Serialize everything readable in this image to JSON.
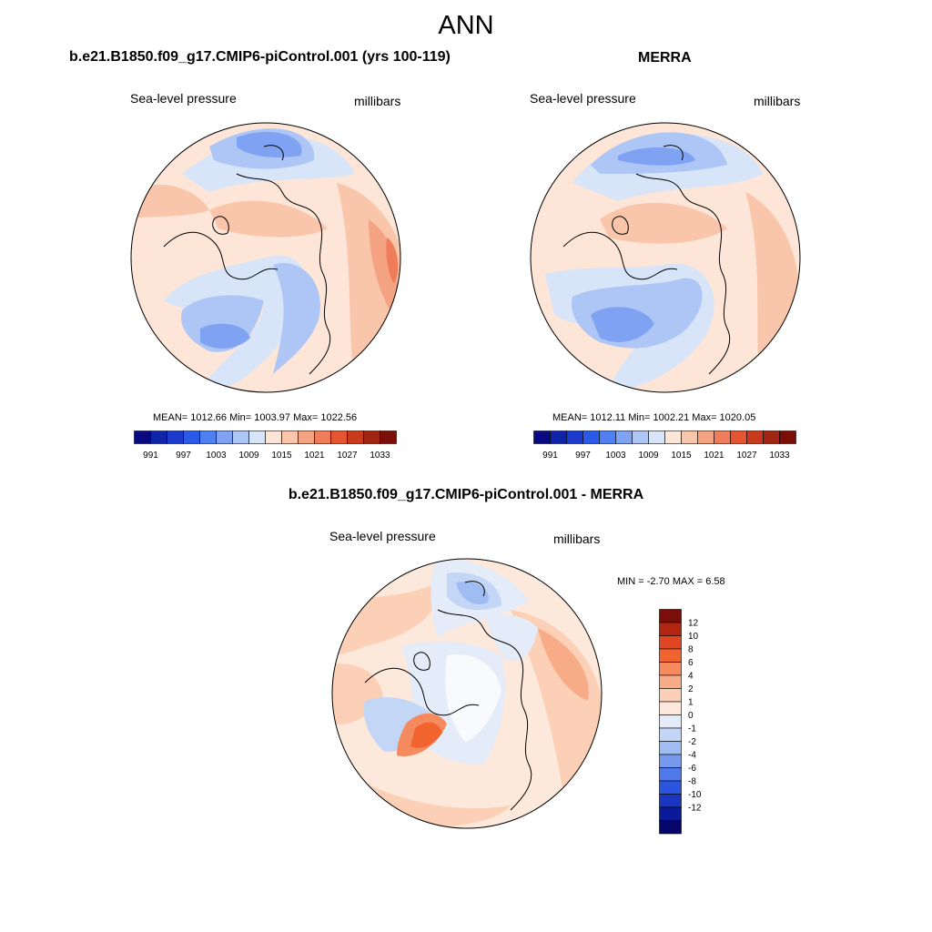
{
  "page": {
    "main_title": "ANN"
  },
  "panels": [
    {
      "id": "model",
      "title": "b.e21.B1850.f09_g17.CMIP6-piControl.001 (yrs 100-119)",
      "left_label": "Sea-level pressure",
      "right_label": "millibars",
      "stats_text": "MEAN= 1012.66  Min= 1003.97  Max= 1022.56",
      "stats": {
        "mean": 1012.66,
        "min": 1003.97,
        "max": 1022.56
      }
    },
    {
      "id": "obs",
      "title": "MERRA",
      "left_label": "Sea-level pressure",
      "right_label": "millibars",
      "stats_text": "MEAN= 1012.11  Min= 1002.21  Max= 1020.05",
      "stats": {
        "mean": 1012.11,
        "min": 1002.21,
        "max": 1020.05
      }
    },
    {
      "id": "diff",
      "title": "b.e21.B1850.f09_g17.CMIP6-piControl.001 - MERRA",
      "left_label": "Sea-level pressure",
      "right_label": "millibars",
      "stats_text": "MIN =  -2.70 MAX =   6.58",
      "stats": {
        "min": -2.7,
        "max": 6.58
      }
    }
  ],
  "colorbars": {
    "absolute": {
      "colors": [
        "#0a0a80",
        "#0f24a6",
        "#1e3ccc",
        "#2b5ae6",
        "#4f7ff2",
        "#7fa3f2",
        "#aec6f5",
        "#d8e4f8",
        "#fde6d8",
        "#f9c6ab",
        "#f4a383",
        "#f07d5a",
        "#e65532",
        "#c73a1c",
        "#a02612",
        "#7a0f0a"
      ],
      "tick_labels": [
        "991",
        "997",
        "1003",
        "1009",
        "1015",
        "1021",
        "1027",
        "1033"
      ]
    },
    "difference": {
      "colors": [
        "#7a0f0a",
        "#b42511",
        "#e0461f",
        "#f2642f",
        "#f58a5e",
        "#f7ab86",
        "#fbd0b6",
        "#fde8dc",
        "#e3ecf8",
        "#c4d6f6",
        "#9fbcf3",
        "#7699ee",
        "#4f78ea",
        "#2b55e0",
        "#1a36c0",
        "#0a1a99",
        "#06066b"
      ],
      "tick_labels": [
        "12",
        "10",
        "8",
        "6",
        "4",
        "2",
        "1",
        "0",
        "-1",
        "-2",
        "-4",
        "-6",
        "-8",
        "-10",
        "-12"
      ]
    }
  }
}
